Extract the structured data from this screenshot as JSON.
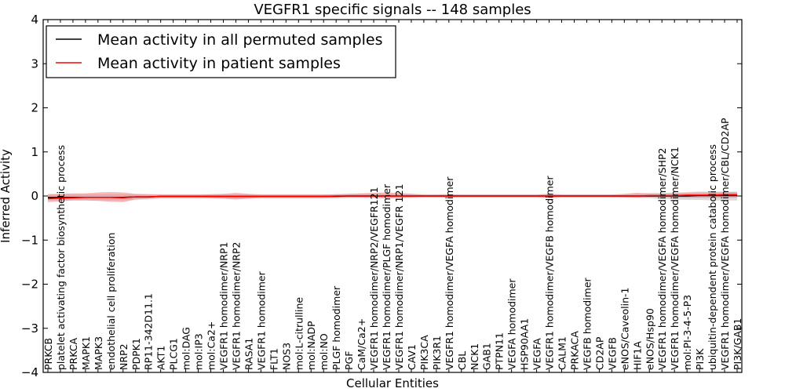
{
  "chart_data": {
    "type": "line",
    "title": "VEGFR1 specific signals -- 148 samples",
    "xlabel": "Cellular Entities",
    "ylabel": "Inferred Activity",
    "ylim": [
      -4,
      4
    ],
    "yticks": [
      -4,
      -3,
      -2,
      -1,
      0,
      1,
      2,
      3,
      4
    ],
    "yticklabels": [
      "−4",
      "−3",
      "−2",
      "−1",
      "0",
      "1",
      "2",
      "3",
      "4"
    ],
    "grid": false,
    "legend_position": "top-left",
    "categories": [
      "PRKCB",
      "platelet activating factor biosynthetic process",
      "PRKCA",
      "MAPK1",
      "MAPK3",
      "endothelial cell proliferation",
      "NRP2",
      "PDPK1",
      "RP11-342D11.1",
      "AKT1",
      "PLCG1",
      "mol:DAG",
      "mol:IP3",
      "mol:Ca2+",
      "VEGFR1 homodimer/NRP1",
      "VEGFR1 homodimer/NRP2",
      "RASA1",
      "VEGFR1 homodimer",
      "FLT1",
      "NOS3",
      "mol:L-citrulline",
      "mol:NADP",
      "mol:NO",
      "PLGF homodimer",
      "PGF",
      "CaM/Ca2+",
      "VEGFR1 homodimer/NRP2/VEGFR121",
      "VEGFR1 homodimer/PLGF homodimer",
      "VEGFR1 homodimer/NRP1/VEGFR 121",
      "CAV1",
      "PIK3CA",
      "PIK3R1",
      "VEGFR1 homodimer/VEGFA homodimer",
      "CBL",
      "NCK1",
      "GAB1",
      "PTPN11",
      "VEGFA homodimer",
      "HSP90AA1",
      "VEGFA",
      "VEGFR1 homodimer/VEGFB homodimer",
      "CALM1",
      "PRKACA",
      "VEGFB homodimer",
      "CD2AP",
      "VEGFB",
      "eNOS/Caveolin-1",
      "HIF1A",
      "eNOS/Hsp90",
      "VEGFR1 homodimer/VEGFA homodimer/SHP2",
      "VEGFR1 homodimer/VEGFA homodimer/NCK1",
      "mol:PI-3-4-5-P3",
      "PI3K",
      "ubiquitin-dependent protein catabolic process",
      "VEGFR1 homodimer/VEGFA homodimer/CBL/CD2AP",
      "PI3K/GAB1"
    ],
    "series": [
      {
        "name": "Mean activity in all permuted samples",
        "color": "#000000",
        "values": [
          -0.03,
          -0.03,
          -0.03,
          -0.03,
          -0.03,
          -0.03,
          -0.03,
          -0.02,
          -0.02,
          -0.01,
          -0.01,
          -0.01,
          -0.01,
          -0.01,
          -0.01,
          -0.01,
          -0.01,
          -0.01,
          -0.01,
          -0.01,
          -0.01,
          -0.01,
          -0.01,
          -0.01,
          0.0,
          0.0,
          0.0,
          0.0,
          0.0,
          0.0,
          0.0,
          0.0,
          0.0,
          0.0,
          0.0,
          0.0,
          0.0,
          0.0,
          0.0,
          0.0,
          0.0,
          0.0,
          0.0,
          0.0,
          0.0,
          0.0,
          0.0,
          0.0,
          0.0,
          0.0,
          0.0,
          0.0,
          0.01,
          0.01,
          0.01,
          0.01
        ],
        "band_low": [
          -0.1,
          -0.1,
          -0.1,
          -0.1,
          -0.1,
          -0.1,
          -0.1,
          -0.08,
          -0.08,
          -0.06,
          -0.06,
          -0.06,
          -0.06,
          -0.06,
          -0.06,
          -0.06,
          -0.06,
          -0.06,
          -0.06,
          -0.06,
          -0.06,
          -0.06,
          -0.06,
          -0.06,
          -0.05,
          -0.05,
          -0.05,
          -0.05,
          -0.05,
          -0.05,
          -0.04,
          -0.04,
          -0.04,
          -0.04,
          -0.04,
          -0.04,
          -0.04,
          -0.04,
          -0.04,
          -0.04,
          -0.06,
          -0.04,
          -0.04,
          -0.04,
          -0.04,
          -0.04,
          -0.04,
          -0.05,
          -0.05,
          -0.07,
          -0.08,
          -0.09,
          -0.09,
          -0.1,
          -0.1,
          -0.1
        ],
        "band_high": [
          0.04,
          0.04,
          0.04,
          0.04,
          0.04,
          0.04,
          0.04,
          0.04,
          0.04,
          0.04,
          0.04,
          0.04,
          0.04,
          0.04,
          0.04,
          0.04,
          0.04,
          0.04,
          0.04,
          0.04,
          0.04,
          0.04,
          0.04,
          0.04,
          0.05,
          0.05,
          0.05,
          0.05,
          0.05,
          0.05,
          0.04,
          0.04,
          0.04,
          0.04,
          0.04,
          0.04,
          0.04,
          0.04,
          0.04,
          0.04,
          0.05,
          0.04,
          0.04,
          0.04,
          0.04,
          0.04,
          0.04,
          0.05,
          0.06,
          0.07,
          0.08,
          0.09,
          0.1,
          0.1,
          0.1,
          0.1
        ]
      },
      {
        "name": "Mean activity in patient samples",
        "color": "#ff0000",
        "values": [
          -0.06,
          -0.05,
          -0.04,
          -0.03,
          -0.03,
          -0.03,
          -0.04,
          -0.02,
          -0.02,
          -0.01,
          -0.01,
          -0.01,
          -0.01,
          -0.01,
          -0.01,
          -0.01,
          -0.01,
          -0.01,
          -0.01,
          -0.01,
          -0.01,
          -0.01,
          -0.01,
          0.0,
          0.0,
          0.0,
          0.0,
          0.0,
          0.0,
          0.0,
          0.0,
          0.0,
          0.0,
          0.0,
          0.0,
          0.0,
          0.0,
          0.0,
          0.0,
          0.0,
          0.0,
          0.0,
          0.0,
          0.0,
          0.0,
          0.0,
          0.0,
          0.0,
          0.01,
          0.01,
          0.01,
          0.02,
          0.02,
          0.02,
          0.03,
          0.03
        ],
        "band_low": [
          -0.14,
          -0.12,
          -0.1,
          -0.1,
          -0.11,
          -0.13,
          -0.14,
          -0.08,
          -0.06,
          -0.04,
          -0.04,
          -0.04,
          -0.04,
          -0.05,
          -0.06,
          -0.08,
          -0.06,
          -0.04,
          -0.04,
          -0.04,
          -0.04,
          -0.04,
          -0.04,
          -0.03,
          -0.03,
          -0.03,
          -0.04,
          -0.05,
          -0.05,
          -0.03,
          -0.02,
          -0.02,
          -0.03,
          -0.02,
          -0.02,
          -0.02,
          -0.02,
          -0.02,
          -0.02,
          -0.02,
          -0.04,
          -0.02,
          -0.02,
          -0.02,
          -0.02,
          -0.02,
          -0.03,
          -0.04,
          -0.03,
          -0.03,
          -0.04,
          -0.04,
          -0.04,
          -0.04,
          -0.04,
          -0.04
        ],
        "band_high": [
          0.04,
          0.05,
          0.06,
          0.06,
          0.08,
          0.09,
          0.08,
          0.05,
          0.04,
          0.03,
          0.03,
          0.03,
          0.03,
          0.04,
          0.05,
          0.07,
          0.05,
          0.03,
          0.03,
          0.03,
          0.03,
          0.03,
          0.03,
          0.04,
          0.05,
          0.06,
          0.07,
          0.08,
          0.07,
          0.05,
          0.03,
          0.03,
          0.04,
          0.03,
          0.03,
          0.03,
          0.03,
          0.03,
          0.03,
          0.03,
          0.05,
          0.03,
          0.03,
          0.03,
          0.03,
          0.03,
          0.05,
          0.07,
          0.06,
          0.05,
          0.06,
          0.07,
          0.08,
          0.08,
          0.09,
          0.09
        ]
      }
    ]
  },
  "colors": {
    "permuted_band": "#bdbdbd",
    "patient_band": "#f08080",
    "axis": "#000000"
  }
}
